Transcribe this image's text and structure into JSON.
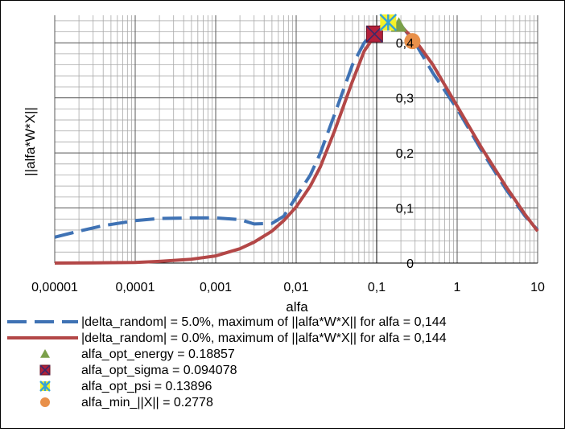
{
  "chart_data": {
    "type": "line",
    "title": "",
    "xlabel": "alfa",
    "ylabel": "||alfa*W*X||",
    "xscale": "log",
    "xlim": [
      1e-05,
      10
    ],
    "ylim": [
      0,
      0.45
    ],
    "grid": true,
    "legend_position": "bottom",
    "x_ticks": [
      "0,00001",
      "0,0001",
      "0,001",
      "0,01",
      "0,1",
      "1",
      "10"
    ],
    "y_ticks": [
      {
        "value": 0,
        "label": "0"
      },
      {
        "value": 0.1,
        "label": "0,1"
      },
      {
        "value": 0.2,
        "label": "0,2"
      },
      {
        "value": 0.3,
        "label": "0,3"
      },
      {
        "value": 0.4,
        "label": "0,4"
      }
    ],
    "series": [
      {
        "name": "|delta_random| = 5.0%, maximum of ||alfa*W*X|| for alfa = 0,144",
        "style": "dashed",
        "color": "#3F72B4",
        "x": [
          1e-05,
          2e-05,
          4e-05,
          0.0001,
          0.0002,
          0.0005,
          0.001,
          0.002,
          0.003,
          0.005,
          0.007,
          0.01,
          0.015,
          0.02,
          0.03,
          0.05,
          0.07,
          0.1,
          0.12,
          0.144,
          0.2,
          0.3,
          0.5,
          1,
          2,
          4,
          7,
          10
        ],
        "y": [
          0.047,
          0.058,
          0.068,
          0.077,
          0.081,
          0.082,
          0.082,
          0.079,
          0.071,
          0.072,
          0.085,
          0.12,
          0.16,
          0.2,
          0.27,
          0.36,
          0.4,
          0.424,
          0.433,
          0.437,
          0.432,
          0.4,
          0.345,
          0.28,
          0.205,
          0.135,
          0.085,
          0.06
        ]
      },
      {
        "name": "|delta_random| = 0.0%, maximum of ||alfa*W*X|| for alfa = 0,144",
        "style": "solid",
        "color": "#B34747",
        "x": [
          1e-05,
          3e-05,
          0.0001,
          0.0002,
          0.0005,
          0.001,
          0.002,
          0.003,
          0.005,
          0.007,
          0.01,
          0.015,
          0.02,
          0.03,
          0.05,
          0.07,
          0.1,
          0.12,
          0.144,
          0.2,
          0.3,
          0.5,
          1,
          2,
          4,
          7,
          10
        ],
        "y": [
          0.0,
          0.0005,
          0.001,
          0.003,
          0.007,
          0.013,
          0.026,
          0.038,
          0.058,
          0.077,
          0.102,
          0.14,
          0.175,
          0.24,
          0.33,
          0.385,
          0.418,
          0.428,
          0.432,
          0.43,
          0.405,
          0.36,
          0.285,
          0.21,
          0.14,
          0.088,
          0.058
        ]
      }
    ],
    "markers": [
      {
        "name": "alfa_opt_energy = 0.18857",
        "x": 0.18857,
        "y": 0.432,
        "shape": "triangle",
        "color": "#7BA04A"
      },
      {
        "name": "alfa_opt_sigma = 0.094078",
        "x": 0.094078,
        "y": 0.416,
        "shape": "square-x",
        "color": "#B3203A"
      },
      {
        "name": "alfa_opt_psi = 0.13896",
        "x": 0.13896,
        "y": 0.437,
        "shape": "star",
        "color": "#35A2D6"
      },
      {
        "name": "alfa_min_||X|| = 0.2778",
        "x": 0.2778,
        "y": 0.403,
        "shape": "circle",
        "color": "#E8904A"
      }
    ]
  }
}
